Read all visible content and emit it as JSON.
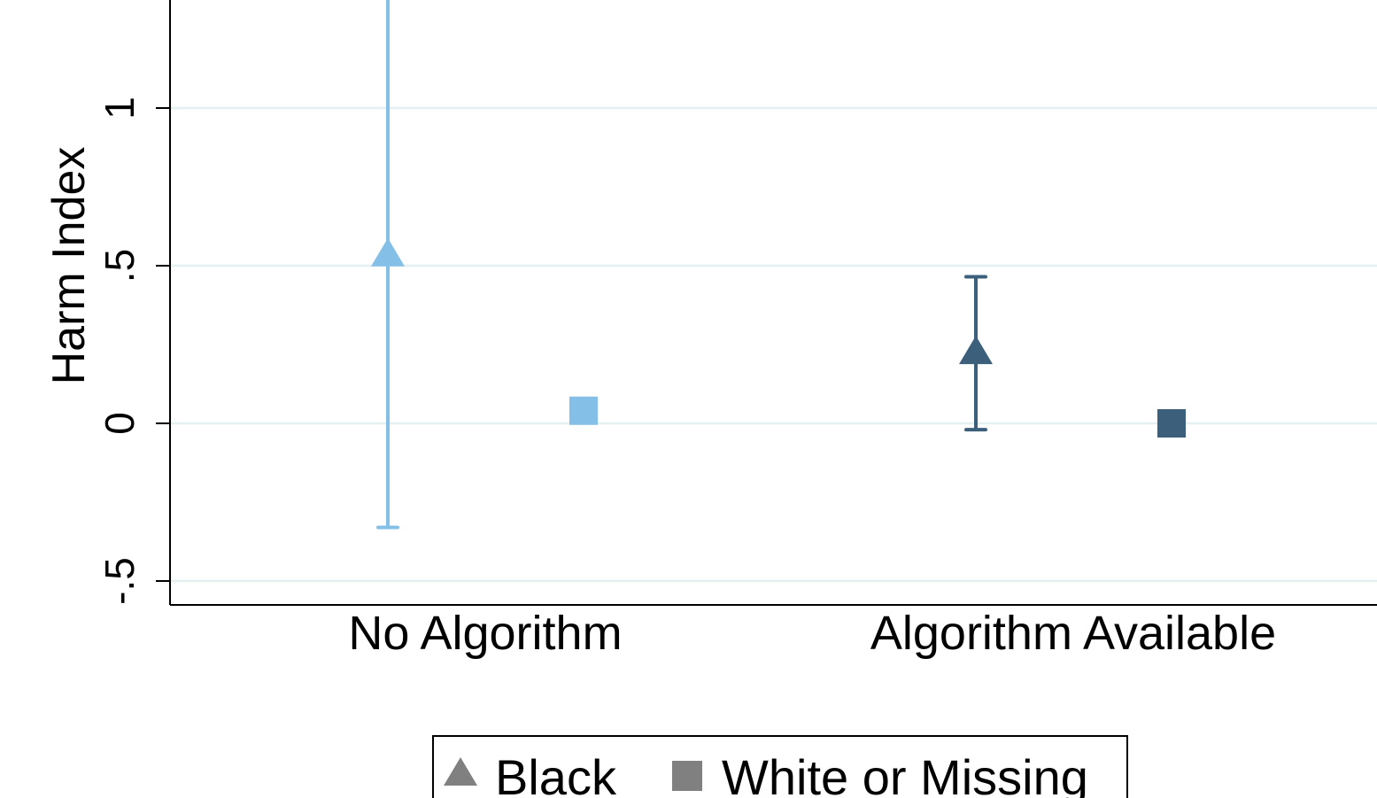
{
  "chart_data": {
    "type": "scatter",
    "ylabel": "Harm Index",
    "yticks": [
      -0.5,
      0,
      0.5,
      1
    ],
    "ytick_labels": [
      "-.5",
      "0",
      ".5",
      "1"
    ],
    "ylim": [
      -0.57,
      1.35
    ],
    "grid": true,
    "legend_position": "bottom",
    "groups": [
      {
        "category": "No Algorithm",
        "color": "#84bfe7",
        "points": [
          {
            "series": "Black",
            "marker": "triangle",
            "y": 0.54,
            "ci": [
              -0.33,
              1.35
            ]
          },
          {
            "series": "White or Missing",
            "marker": "square",
            "y": 0.04
          }
        ]
      },
      {
        "category": "Algorithm Available",
        "color": "#3c5f7b",
        "points": [
          {
            "series": "Black",
            "marker": "triangle",
            "y": 0.23,
            "ci": [
              -0.02,
              0.465
            ]
          },
          {
            "series": "White or Missing",
            "marker": "square",
            "y": 0.0
          }
        ]
      }
    ],
    "legend": [
      {
        "label": "Black",
        "marker": "triangle",
        "color": "#808080"
      },
      {
        "label": "White or Missing",
        "marker": "square",
        "color": "#808080"
      }
    ],
    "gridline_color": "#e6f0f0"
  }
}
